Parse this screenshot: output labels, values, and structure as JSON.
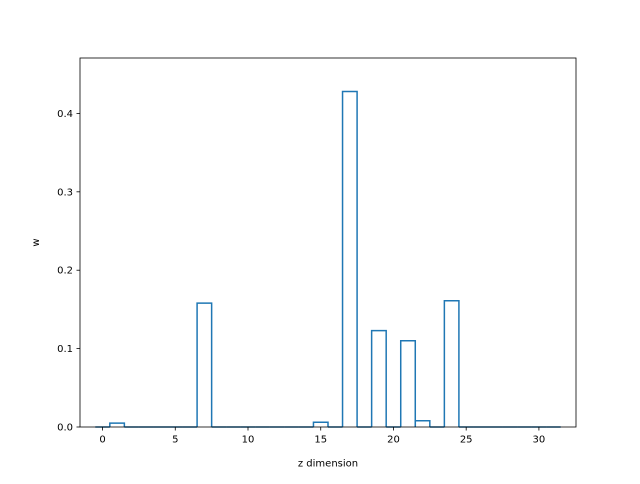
{
  "chart_data": {
    "type": "bar",
    "style": "step-outline",
    "x": [
      0,
      1,
      2,
      3,
      4,
      5,
      6,
      7,
      8,
      9,
      10,
      11,
      12,
      13,
      14,
      15,
      16,
      17,
      18,
      19,
      20,
      21,
      22,
      23,
      24,
      25,
      26,
      27,
      28,
      29,
      30,
      31
    ],
    "values": [
      0.0,
      0.005,
      0.0,
      0.0,
      0.0,
      0.0,
      0.0,
      0.158,
      0.0,
      0.0,
      0.0,
      0.0,
      0.0,
      0.0,
      0.0,
      0.006,
      0.0,
      0.428,
      0.0,
      0.123,
      0.0,
      0.11,
      0.008,
      0.0,
      0.161,
      0.0,
      0.0,
      0.0,
      0.0,
      0.0,
      0.0,
      0.0
    ],
    "title": "",
    "xlabel": "z dimension",
    "ylabel": "w",
    "xlim": [
      -1.55,
      32.55
    ],
    "ylim": [
      0,
      0.4707
    ],
    "xticks": [
      0,
      5,
      10,
      15,
      20,
      25,
      30
    ],
    "xtick_labels": [
      "0",
      "5",
      "10",
      "15",
      "20",
      "25",
      "30"
    ],
    "yticks": [
      0.0,
      0.1,
      0.2,
      0.3,
      0.4
    ],
    "ytick_labels": [
      "0.0",
      "0.1",
      "0.2",
      "0.3",
      "0.4"
    ],
    "grid": false,
    "color": "#1f77b4"
  }
}
